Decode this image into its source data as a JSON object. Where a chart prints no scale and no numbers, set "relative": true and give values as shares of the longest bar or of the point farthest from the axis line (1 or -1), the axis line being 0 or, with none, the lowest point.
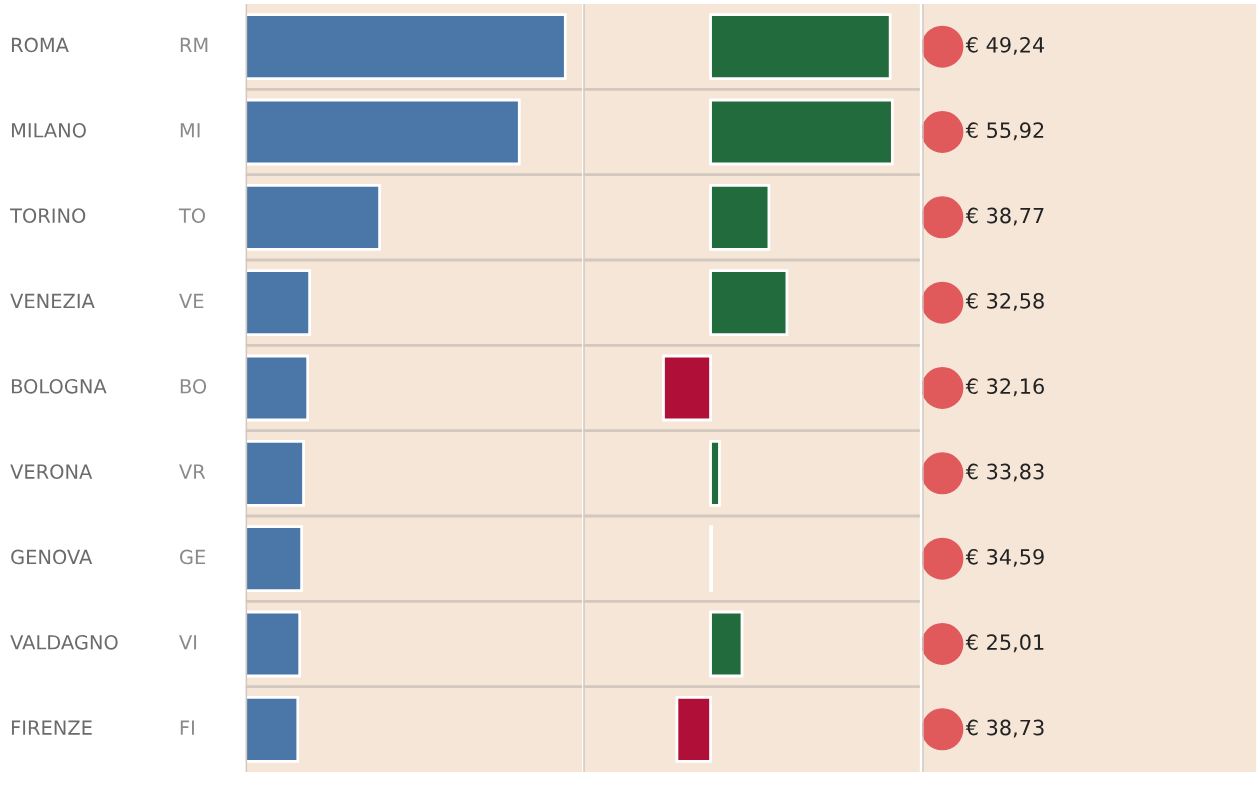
{
  "chart_data": [
    {
      "type": "bar",
      "orientation": "horizontal",
      "relative": true,
      "grid": "y",
      "categories": [
        "ROMA",
        "MILANO",
        "TORINO",
        "VENEZIA",
        "BOLOGNA",
        "VERONA",
        "GENOVA",
        "VALDAGNO",
        "FIRENZE"
      ],
      "y2_categories": [
        "RM",
        "MI",
        "TO",
        "VE",
        "BO",
        "VR",
        "GE",
        "VI",
        "FI"
      ],
      "values": [
        1,
        0.856,
        0.419,
        0.2,
        0.194,
        0.181,
        0.175,
        0.169,
        0.163
      ],
      "color": "#4b76a8"
    },
    {
      "type": "bar",
      "orientation": "horizontal",
      "relative": true,
      "grid": "y",
      "categories": [
        null,
        null,
        null,
        null,
        null,
        null,
        null,
        null,
        null
      ],
      "values": [
        0.988,
        1,
        0.321,
        0.42,
        -0.259,
        0.049,
        0.006,
        0.173,
        -0.185
      ],
      "colors": [
        "#226b3c",
        "#226b3c",
        "#226b3c",
        "#226b3c",
        "#b01038",
        "#226b3c",
        "#226b3c",
        "#226b3c",
        "#b01038"
      ]
    },
    {
      "type": "other",
      "color": "#e05a5c",
      "values": [
        49.24,
        55.92,
        38.77,
        32.58,
        32.16,
        33.83,
        34.59,
        25.01,
        38.73
      ],
      "value_labels": [
        "€ 49,24",
        "€ 55,92",
        "€ 38,77",
        "€ 32,58",
        "€ 32,16",
        "€ 33,83",
        "€ 34,59",
        "€ 25,01",
        "€ 38,73"
      ]
    }
  ]
}
